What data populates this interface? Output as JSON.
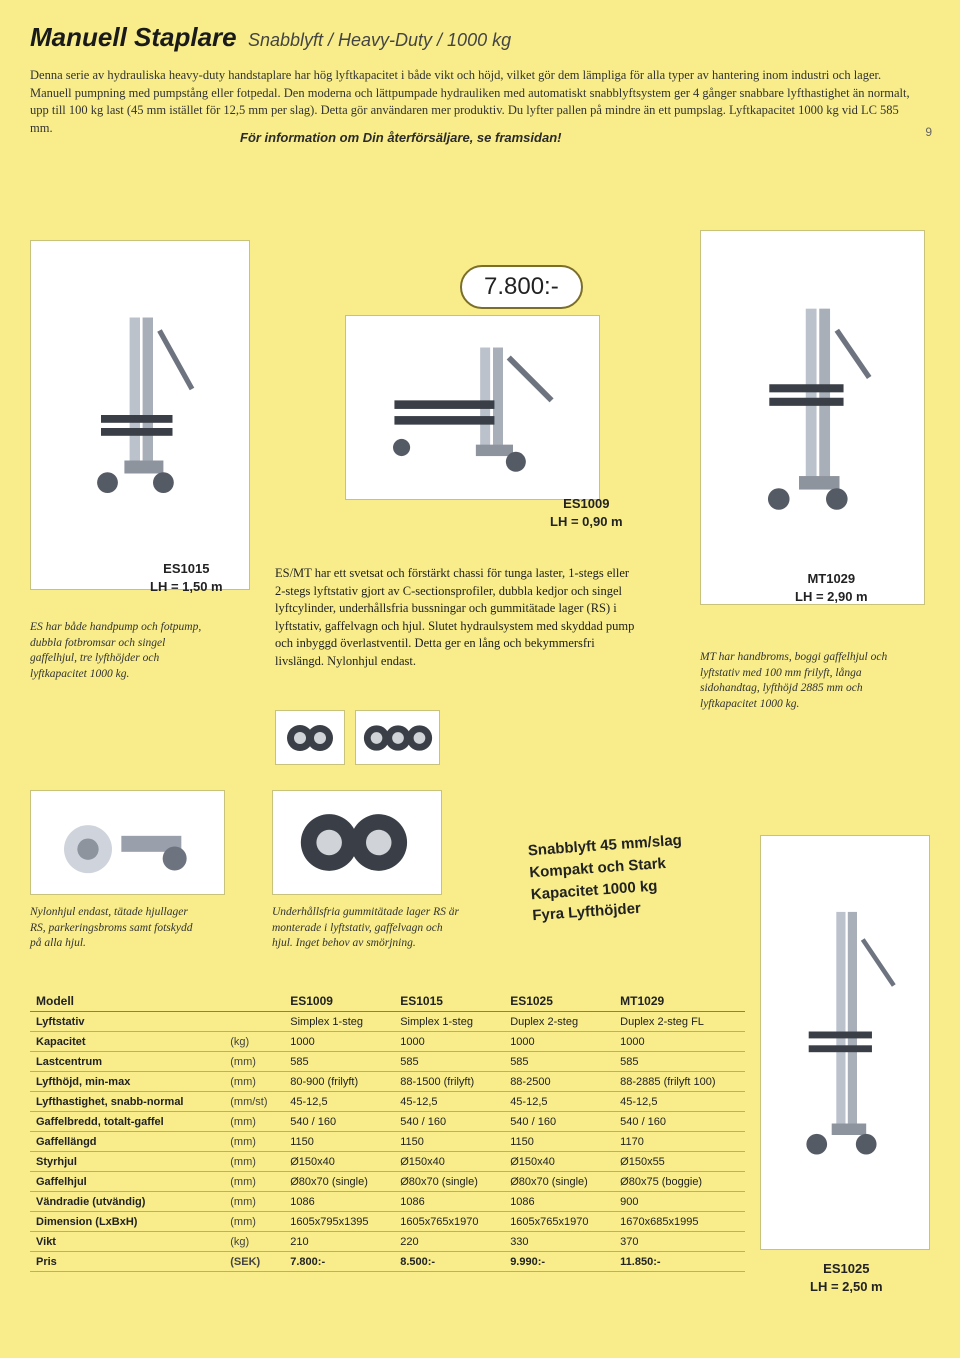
{
  "header": {
    "title_main": "Manuell Staplare",
    "title_sub": "Snabblyft / Heavy-Duty / 1000 kg"
  },
  "intro_text": "Denna serie av hydrauliska heavy-duty handstaplare har hög lyftkapacitet i både vikt och höjd, vilket gör dem lämpliga för alla typer av hantering inom industri och lager. Manuell pumpning med pumpstång eller fotpedal. Den moderna och lättpumpade hydrauliken med automatiskt snabblyftsystem ger 4 gånger snabbare lyfthastighet än normalt, upp till 100 kg last (45 mm istället för 12,5 mm per slag). Detta gör användaren mer produktiv. Du lyfter pallen på mindre än ett pumpslag. Lyftkapacitet 1000 kg vid LC 585 mm.",
  "price_badge": "7.800:-",
  "products": {
    "es1009": {
      "model": "ES1009",
      "lh": "LH = 0,90 m"
    },
    "es1015": {
      "model": "ES1015",
      "lh": "LH = 1,50 m"
    },
    "mt1029": {
      "model": "MT1029",
      "lh": "LH = 2,90 m"
    },
    "es1025": {
      "model": "ES1025",
      "lh": "LH = 2,50 m"
    }
  },
  "captions": {
    "es_desc": "ES har både handpump och fotpump, dubbla fotbromsar och singel gaffelhjul, tre lyfthöjder och lyftkapacitet 1000 kg.",
    "es_mt_text": "ES/MT har ett svetsat och förstärkt chassi för tunga laster, 1-stegs eller 2-stegs lyftstativ gjort av C-sectionsprofiler, dubbla kedjor och singel lyftcylinder, underhållsfria bussningar och gummitätade lager (RS) i lyftstativ, gaffelvagn och hjul. Slutet hydraulsystem med skyddad pump och inbyggd överlastventil. Detta ger en lång och bekymmersfri livslängd. Nylonhjul endast.",
    "mt_desc": "MT har handbroms, boggi gaffelhjul och lyftstativ med 100 mm frilyft, långa sidohandtag, lyfthöjd 2885 mm och lyftkapacitet 1000 kg.",
    "nylon": "Nylonhjul endast, tätade hjullager RS, parkeringsbroms samt fotskydd på alla hjul.",
    "bearings": "Underhållsfria gummitätade lager RS är monterade i lyftstativ, gaffelvagn och hjul. Inget behov av smörjning."
  },
  "promo": {
    "l1": "Snabblyft 45 mm/slag",
    "l2": "Kompakt och Stark",
    "l3": "Kapacitet 1000 kg",
    "l4": "Fyra Lyfthöjder"
  },
  "spec_table": {
    "header_label": "Modell",
    "models": [
      "ES1009",
      "ES1015",
      "ES1025",
      "MT1029"
    ],
    "rows": [
      {
        "label": "Lyftstativ",
        "unit": "",
        "vals": [
          "Simplex 1-steg",
          "Simplex 1-steg",
          "Duplex 2-steg",
          "Duplex 2-steg FL"
        ]
      },
      {
        "label": "Kapacitet",
        "unit": "(kg)",
        "vals": [
          "1000",
          "1000",
          "1000",
          "1000"
        ]
      },
      {
        "label": "Lastcentrum",
        "unit": "(mm)",
        "vals": [
          "585",
          "585",
          "585",
          "585"
        ]
      },
      {
        "label": "Lyfthöjd, min-max",
        "unit": "(mm)",
        "vals": [
          "80-900 (frilyft)",
          "88-1500 (frilyft)",
          "88-2500",
          "88-2885 (frilyft 100)"
        ]
      },
      {
        "label": "Lyfthastighet, snabb-normal",
        "unit": "(mm/st)",
        "vals": [
          "45-12,5",
          "45-12,5",
          "45-12,5",
          "45-12,5"
        ]
      },
      {
        "label": "Gaffelbredd, totalt-gaffel",
        "unit": "(mm)",
        "vals": [
          "540 / 160",
          "540 / 160",
          "540 / 160",
          "540 / 160"
        ]
      },
      {
        "label": "Gaffellängd",
        "unit": "(mm)",
        "vals": [
          "1150",
          "1150",
          "1150",
          "1170"
        ]
      },
      {
        "label": "Styrhjul",
        "unit": "(mm)",
        "vals": [
          "Ø150x40",
          "Ø150x40",
          "Ø150x40",
          "Ø150x55"
        ]
      },
      {
        "label": "Gaffelhjul",
        "unit": "(mm)",
        "vals": [
          "Ø80x70 (single)",
          "Ø80x70 (single)",
          "Ø80x70 (single)",
          "Ø80x75 (boggie)"
        ]
      },
      {
        "label": "Vändradie (utvändig)",
        "unit": "(mm)",
        "vals": [
          "1086",
          "1086",
          "1086",
          "900"
        ]
      },
      {
        "label": "Dimension (LxBxH)",
        "unit": "(mm)",
        "vals": [
          "1605x795x1395",
          "1605x765x1970",
          "1605x765x1970",
          "1670x685x1995"
        ]
      },
      {
        "label": "Vikt",
        "unit": "(kg)",
        "vals": [
          "210",
          "220",
          "330",
          "370"
        ]
      },
      {
        "label": "Pris",
        "unit": "(SEK)",
        "vals": [
          "7.800:-",
          "8.500:-",
          "9.990:-",
          "11.850:-"
        ],
        "price": true
      }
    ]
  },
  "footer": "För information om Din återförsäljare, se framsidan!",
  "page_number": "9",
  "colors": {
    "bg": "#f8ed8a",
    "border": "#b9b25f",
    "img_border": "#c9c27a",
    "text": "#222"
  }
}
